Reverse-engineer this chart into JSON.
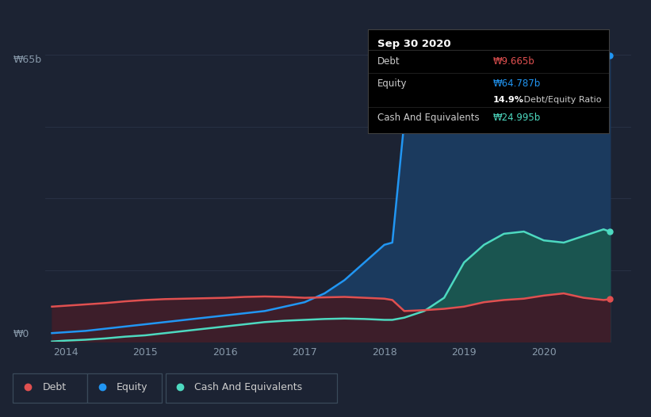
{
  "bg_color": "#1c2333",
  "plot_bg_color": "#1c2333",
  "grid_color": "#2a3347",
  "ylabel_top": "₩65b",
  "ylabel_bottom": "₩0",
  "x_ticks": [
    2014,
    2015,
    2016,
    2017,
    2018,
    2019,
    2020
  ],
  "years": [
    2013.83,
    2014.0,
    2014.25,
    2014.5,
    2014.75,
    2015.0,
    2015.25,
    2015.5,
    2015.75,
    2016.0,
    2016.25,
    2016.5,
    2016.75,
    2017.0,
    2017.25,
    2017.5,
    2017.75,
    2018.0,
    2018.1,
    2018.25,
    2018.5,
    2018.75,
    2019.0,
    2019.25,
    2019.5,
    2019.75,
    2020.0,
    2020.25,
    2020.5,
    2020.75,
    2020.83
  ],
  "equity": [
    2.0,
    2.2,
    2.5,
    3.0,
    3.5,
    4.0,
    4.5,
    5.0,
    5.5,
    6.0,
    6.5,
    7.0,
    8.0,
    9.0,
    11.0,
    14.0,
    18.0,
    22.0,
    22.5,
    50.0,
    54.0,
    56.0,
    57.5,
    59.0,
    60.5,
    62.0,
    62.5,
    63.0,
    63.5,
    64.3,
    64.787
  ],
  "debt": [
    8.0,
    8.2,
    8.5,
    8.8,
    9.2,
    9.5,
    9.7,
    9.8,
    9.9,
    10.0,
    10.2,
    10.3,
    10.2,
    10.0,
    10.1,
    10.2,
    10.0,
    9.8,
    9.5,
    7.0,
    7.2,
    7.5,
    8.0,
    9.0,
    9.5,
    9.8,
    10.5,
    11.0,
    10.0,
    9.5,
    9.665
  ],
  "cash": [
    0.1,
    0.3,
    0.5,
    0.8,
    1.2,
    1.5,
    2.0,
    2.5,
    3.0,
    3.5,
    4.0,
    4.5,
    4.8,
    5.0,
    5.2,
    5.3,
    5.2,
    5.0,
    5.0,
    5.5,
    7.0,
    10.0,
    18.0,
    22.0,
    24.5,
    25.0,
    23.0,
    22.5,
    24.0,
    25.5,
    24.995
  ],
  "debt_color": "#e05050",
  "equity_color": "#2196f3",
  "cash_color": "#4dd9c0",
  "equity_fill": "#1b3a5e",
  "cash_fill": "#1a5550",
  "debt_fill": "#3d1e2a",
  "tooltip": {
    "title": "Sep 30 2020",
    "debt_label": "Debt",
    "debt_value": "₩9.665b",
    "debt_color": "#e05050",
    "equity_label": "Equity",
    "equity_value": "₩64.787b",
    "equity_color": "#2196f3",
    "ratio_label": "14.9%",
    "ratio_suffix": " Debt/Equity Ratio",
    "cash_label": "Cash And Equivalents",
    "cash_value": "₩24.995b",
    "cash_color": "#4dd9c0"
  },
  "legend": [
    {
      "label": "Debt",
      "color": "#e05050"
    },
    {
      "label": "Equity",
      "color": "#2196f3"
    },
    {
      "label": "Cash And Equivalents",
      "color": "#4dd9c0"
    }
  ],
  "ylim": [
    0,
    68
  ],
  "xlim": [
    2013.75,
    2021.1
  ]
}
